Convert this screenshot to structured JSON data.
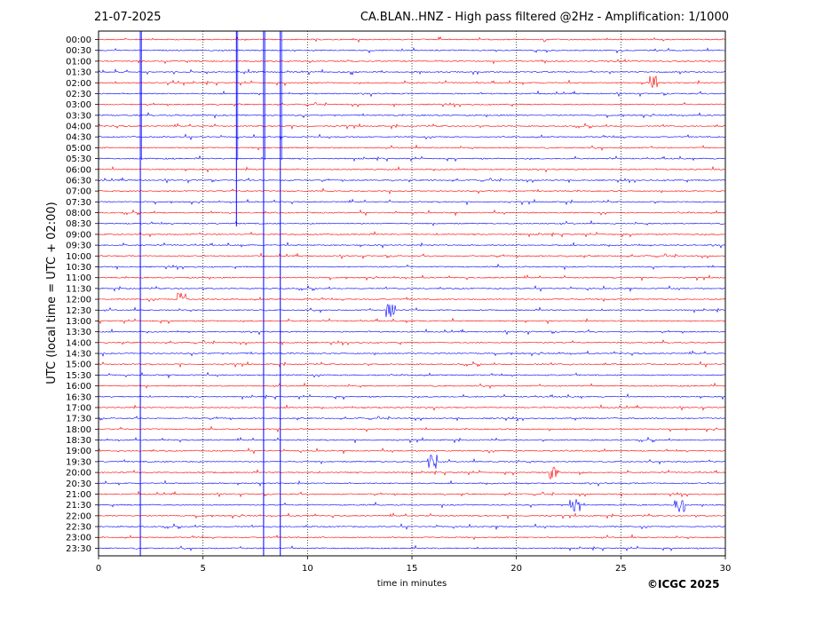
{
  "header": {
    "date": "21-07-2025",
    "title": "CA.BLAN..HNZ - High pass filtered @2Hz - Amplification: 1/1000"
  },
  "footer": {
    "copyright": "©ICGC 2025"
  },
  "colors": {
    "even_row": "#ff0000",
    "odd_row": "#0000ff",
    "grid": "#000000"
  },
  "chart_data": {
    "type": "line",
    "title": "CA.BLAN..HNZ - High pass filtered @2Hz - Amplification: 1/1000",
    "xlabel": "time in minutes",
    "ylabel": "UTC (local time = UTC + 02:00)",
    "xlim": [
      0,
      30
    ],
    "xticks": [
      0,
      5,
      10,
      15,
      20,
      25,
      30
    ],
    "x_grid": "dotted vertical lines every 5 minutes",
    "rows": [
      "00:00",
      "00:30",
      "01:00",
      "01:30",
      "02:00",
      "02:30",
      "03:00",
      "03:30",
      "04:00",
      "04:30",
      "05:00",
      "05:30",
      "06:00",
      "06:30",
      "07:00",
      "07:30",
      "08:00",
      "08:30",
      "09:00",
      "09:30",
      "10:00",
      "10:30",
      "11:00",
      "11:30",
      "12:00",
      "12:30",
      "13:00",
      "13:30",
      "14:00",
      "14:30",
      "15:00",
      "15:30",
      "16:00",
      "16:30",
      "17:00",
      "17:30",
      "18:00",
      "18:30",
      "19:00",
      "19:30",
      "20:00",
      "20:30",
      "21:00",
      "21:30",
      "22:00",
      "22:30",
      "23:00",
      "23:30"
    ],
    "row_colors": "alternating red / blue starting with red at 00:00",
    "notable_events": [
      {
        "row": "00:00",
        "minute": 2.0,
        "note": "large spike extending through many rows"
      },
      {
        "row": "00:00",
        "minute": 6.6,
        "note": "large spike"
      },
      {
        "row": "00:00",
        "minute": 7.9,
        "note": "large spike extending through many rows"
      },
      {
        "row": "00:00",
        "minute": 8.7,
        "note": "large spike extending through many rows"
      },
      {
        "row": "02:00",
        "minute": 26.5,
        "note": "burst"
      },
      {
        "row": "12:00",
        "minute": 4.0,
        "note": "burst"
      },
      {
        "row": "12:30",
        "minute": 14.0,
        "note": "burst"
      },
      {
        "row": "19:30",
        "minute": 16.0,
        "note": "bursts"
      },
      {
        "row": "20:00",
        "minute": 21.8,
        "note": "burst"
      },
      {
        "row": "21:30",
        "minute": 22.8,
        "note": "burst cluster"
      },
      {
        "row": "21:30",
        "minute": 27.8,
        "note": "burst cluster"
      }
    ]
  }
}
